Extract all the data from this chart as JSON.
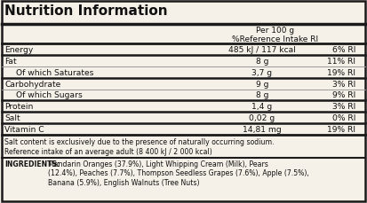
{
  "title": "Nutrition Information",
  "header_col2": "Per 100 g\n%Reference Intake RI",
  "rows": [
    {
      "name": "Energy",
      "indent": false,
      "value": "485 kJ / 117 kcal",
      "ri": "6% RI"
    },
    {
      "name": "Fat",
      "indent": false,
      "value": "8 g",
      "ri": "11% RI"
    },
    {
      "name": "Of which Saturates",
      "indent": true,
      "value": "3,7 g",
      "ri": "19% RI"
    },
    {
      "name": "Carbohydrate",
      "indent": false,
      "value": "9 g",
      "ri": "3% RI"
    },
    {
      "name": "Of which Sugars",
      "indent": true,
      "value": "8 g",
      "ri": "9% RI"
    },
    {
      "name": "Protein",
      "indent": false,
      "value": "1,4 g",
      "ri": "3% RI"
    },
    {
      "name": "Salt",
      "indent": false,
      "value": "0,02 g",
      "ri": "0% RI"
    },
    {
      "name": "Vitamin C",
      "indent": false,
      "value": "14,81 mg",
      "ri": "19% RI"
    }
  ],
  "footnote1": "Salt content is exclusively due to the presence of naturally occurring sodium.",
  "footnote2": "Reference intake of an average adult (8 400 kJ / 2 000 kcal)",
  "ingredients_bold": "INGREDIENTS:",
  "ingredients_text": "Mandarin Oranges (37.9%), Light Whipping Cream (Milk), Pears\n(12.4%), Peaches (7.7%), Thompson Seedless Grapes (7.6%), Apple (7.5%),\nBanana (5.9%), English Walnuts (Tree Nuts)",
  "bg_color": "#f5f0e8",
  "border_color": "#1a1a1a",
  "text_color": "#111111",
  "thin_line_color": "#999999",
  "thick_line_color": "#1a1a1a",
  "fs_title": 11.0,
  "fs_header": 6.5,
  "fs_row": 6.6,
  "fs_footnote": 5.6,
  "fs_ingr": 5.6
}
